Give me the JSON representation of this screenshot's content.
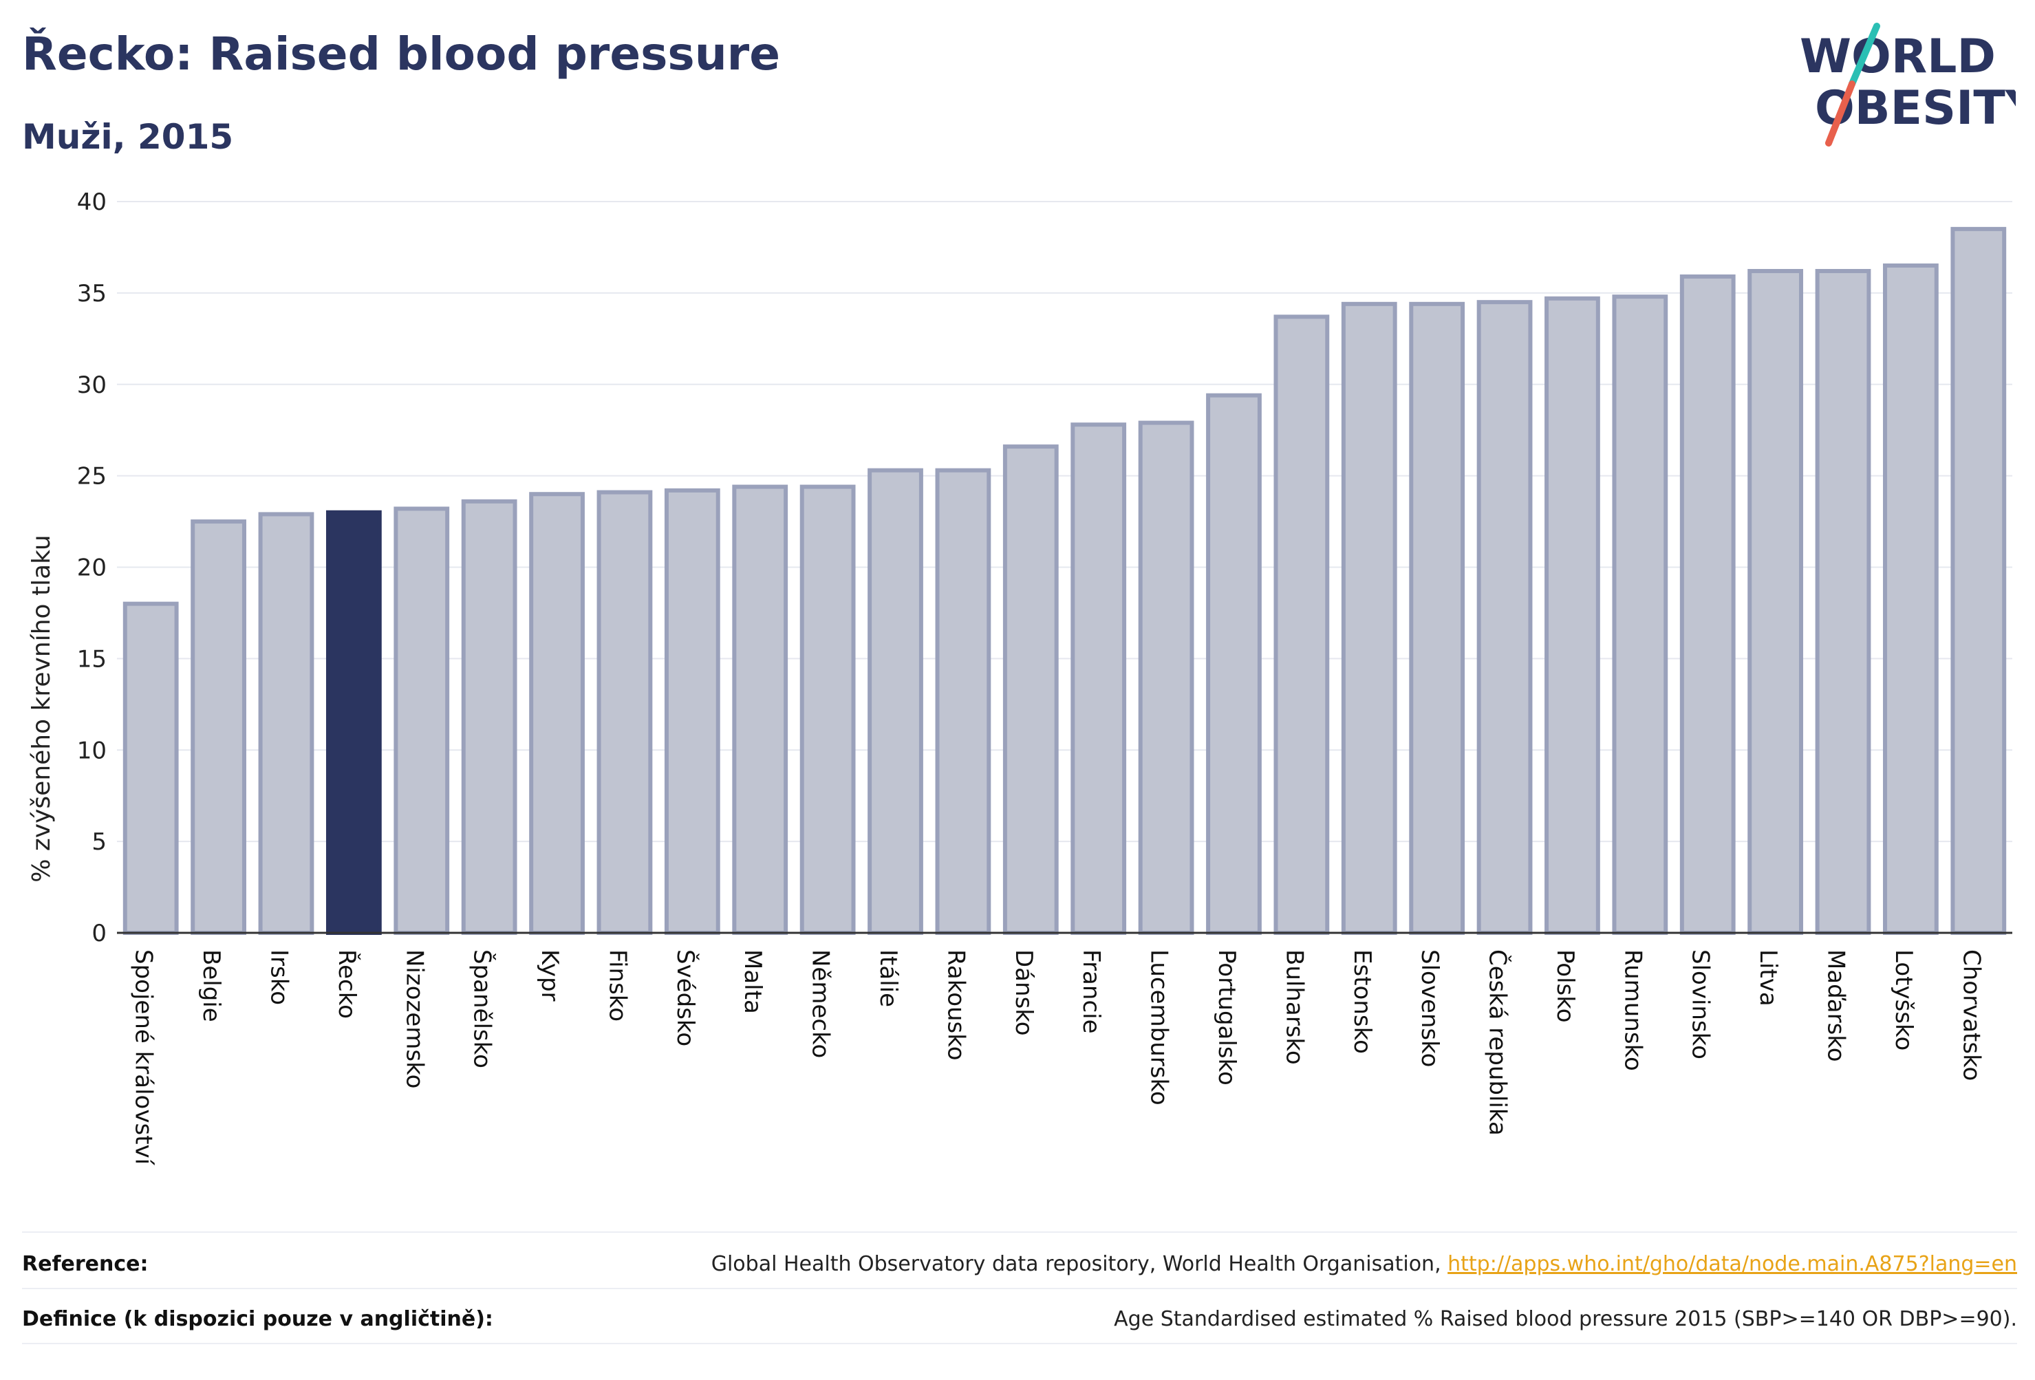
{
  "header": {
    "title": "Řecko: Raised blood pressure",
    "subtitle": "Muži, 2015"
  },
  "logo": {
    "line1": "WORLD",
    "line2": "OBESITY",
    "accent_colors": [
      "#2bbfb4",
      "#e8604c"
    ]
  },
  "colors": {
    "bar_default_fill": "#c0c4d1",
    "bar_default_stroke": "#9aa1bb",
    "bar_highlight": "#2b3560",
    "grid": "#e6e8ef",
    "axis": "#333333"
  },
  "chart_data": {
    "type": "bar",
    "title": "Řecko: Raised blood pressure",
    "subtitle": "Muži, 2015",
    "xlabel": "",
    "ylabel": "% zvýšeného krevního tlaku",
    "ylim": [
      0,
      40
    ],
    "yticks": [
      0,
      5,
      10,
      15,
      20,
      25,
      30,
      35,
      40
    ],
    "grid": true,
    "highlight": "Řecko",
    "categories": [
      "Spojené království",
      "Belgie",
      "Irsko",
      "Řecko",
      "Nizozemsko",
      "Španělsko",
      "Kypr",
      "Finsko",
      "Švédsko",
      "Malta",
      "Německo",
      "Itálie",
      "Rakousko",
      "Dánsko",
      "Francie",
      "Lucembursko",
      "Portugalsko",
      "Bulharsko",
      "Estonsko",
      "Slovensko",
      "Česká republika",
      "Polsko",
      "Rumunsko",
      "Slovinsko",
      "Litva",
      "Maďarsko",
      "Lotyšsko",
      "Chorvatsko"
    ],
    "values": [
      18.0,
      22.5,
      22.9,
      23.0,
      23.2,
      23.6,
      24.0,
      24.1,
      24.2,
      24.4,
      24.4,
      25.3,
      25.3,
      26.6,
      27.8,
      27.9,
      29.4,
      33.7,
      34.4,
      34.4,
      34.5,
      34.7,
      34.8,
      35.9,
      36.2,
      36.2,
      36.5,
      38.5
    ]
  },
  "footer": {
    "reference_label": "Reference:",
    "reference_text": "Global Health Observatory data repository, World Health Organisation, ",
    "reference_link": "http://apps.who.int/gho/data/node.main.A875?lang=en",
    "definition_label": "Definice (k dispozici pouze v angličtině):",
    "definition_text": "Age Standardised estimated % Raised blood pressure 2015 (SBP>=140 OR DBP>=90)."
  }
}
